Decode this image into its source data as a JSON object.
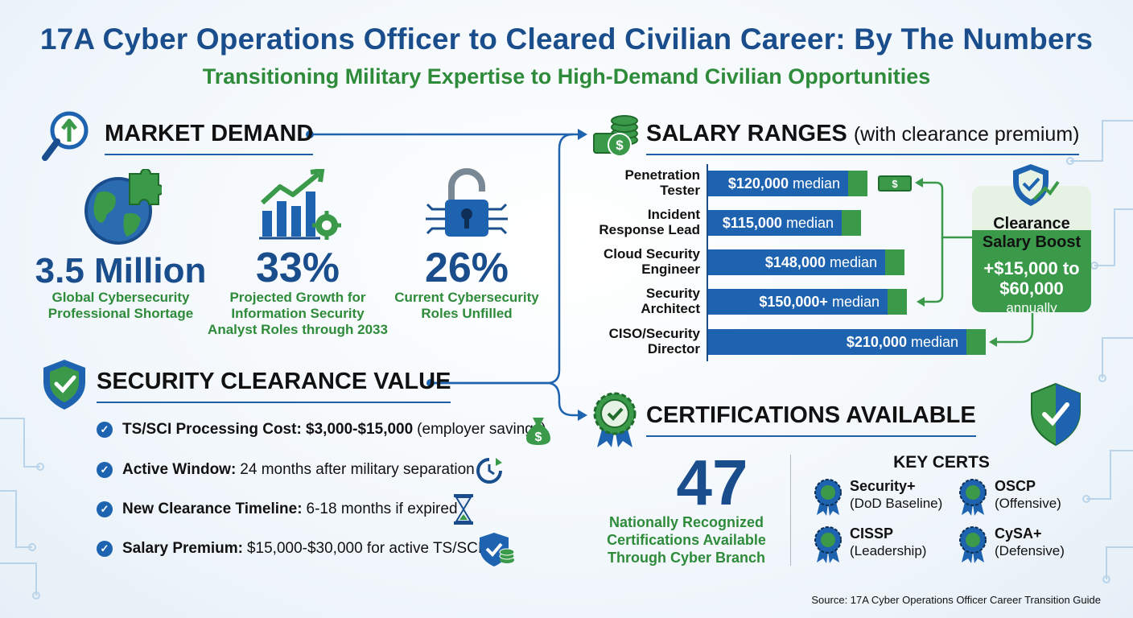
{
  "header": {
    "title": "17A Cyber Operations Officer to Cleared Civilian Career: By The Numbers",
    "subtitle": "Transitioning Military Expertise to High-Demand Civilian Opportunities"
  },
  "market_demand": {
    "title": "MARKET DEMAND",
    "stats": [
      {
        "value": "3.5 Million",
        "caption_1": "Global Cybersecurity",
        "caption_2": "Professional Shortage",
        "caption_3": "",
        "icon": "globe-puzzle-icon"
      },
      {
        "value": "33%",
        "caption_1": "Projected Growth for",
        "caption_2": "Information Security",
        "caption_3": "Analyst Roles through 2033",
        "icon": "growth-chart-icon"
      },
      {
        "value": "26%",
        "caption_1": "Current Cybersecurity",
        "caption_2": "Roles Unfilled",
        "caption_3": "",
        "icon": "circuit-lock-icon"
      }
    ]
  },
  "salary": {
    "title": "SALARY RANGES",
    "title_suffix": "(with clearance premium)",
    "bars": [
      {
        "label_1": "Penetration",
        "label_2": "Tester",
        "amount": "$120,000",
        "unit": "median",
        "value": 120000
      },
      {
        "label_1": "Incident",
        "label_2": "Response Lead",
        "amount": "$115,000",
        "unit": "median",
        "value": 115000
      },
      {
        "label_1": "Cloud Security",
        "label_2": "Engineer",
        "amount": "$148,000",
        "unit": "median",
        "value": 148000
      },
      {
        "label_1": "Security",
        "label_2": "Architect",
        "amount": "$150,000+",
        "unit": "median",
        "value": 150000
      },
      {
        "label_1": "CISO/Security",
        "label_2": "Director",
        "amount": "$210,000",
        "unit": "median",
        "value": 210000
      }
    ],
    "boost": {
      "title_1": "Clearance",
      "title_2": "Salary Boost",
      "amount_1": "+$15,000 to",
      "amount_2": "$60,000",
      "period": "annually"
    }
  },
  "clearance": {
    "title": "SECURITY CLEARANCE VALUE",
    "items": [
      {
        "bold": "TS/SCI Processing Cost: $3,000-$15,000",
        "text": "(employer savings)",
        "icon": "money-bag-icon"
      },
      {
        "bold": "Active Window:",
        "text": "24 months after military separation",
        "icon": "clock-refresh-icon"
      },
      {
        "bold": "New Clearance Timeline:",
        "text": "6-18 months if expired",
        "icon": "hourglass-icon"
      },
      {
        "bold": "Salary Premium:",
        "text": "$15,000-$30,000 for active TS/SCI",
        "icon": "shield-coins-icon"
      }
    ]
  },
  "certifications": {
    "title": "CERTIFICATIONS AVAILABLE",
    "count": "47",
    "caption_1": "Nationally Recognized",
    "caption_2": "Certifications Available",
    "caption_3": "Through Cyber Branch",
    "key_title": "KEY CERTS",
    "certs": [
      {
        "name": "Security+",
        "sub": "(DoD Baseline)"
      },
      {
        "name": "OSCP",
        "sub": "(Offensive)"
      },
      {
        "name": "CISSP",
        "sub": "(Leadership)"
      },
      {
        "name": "CySA+",
        "sub": "(Defensive)"
      }
    ]
  },
  "source": "Source: 17A Cyber Operations Officer Career Transition Guide",
  "colors": {
    "brand_blue": "#1a4d8c",
    "bar_blue": "#1e63b0",
    "accent_green": "#3a9a4a",
    "text_green": "#2e8b3a"
  }
}
